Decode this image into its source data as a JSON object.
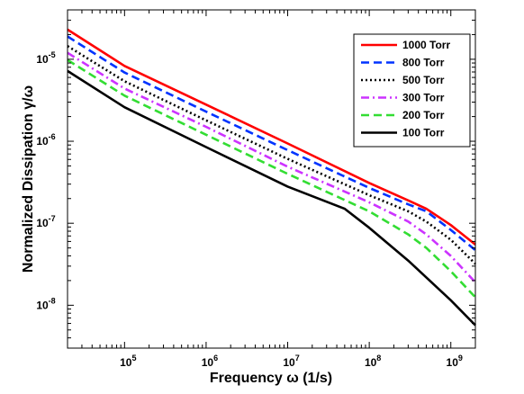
{
  "chart_data": {
    "type": "line",
    "xlabel": "Frequency ω (1/s)",
    "ylabel": "Normalized Dissipation γ/ω",
    "x_scale": "log",
    "y_scale": "log",
    "xlim": [
      20000,
      2000000000
    ],
    "ylim": [
      3e-09,
      4e-05
    ],
    "x_ticks": [
      {
        "value": 100000,
        "base": "10",
        "exp": "5"
      },
      {
        "value": 1000000,
        "base": "10",
        "exp": "6"
      },
      {
        "value": 10000000,
        "base": "10",
        "exp": "7"
      },
      {
        "value": 100000000,
        "base": "10",
        "exp": "8"
      },
      {
        "value": 1000000000,
        "base": "10",
        "exp": "9"
      }
    ],
    "y_ticks": [
      {
        "value": 1e-08,
        "base": "10",
        "exp": "-8"
      },
      {
        "value": 1e-07,
        "base": "10",
        "exp": "-7"
      },
      {
        "value": 1e-06,
        "base": "10",
        "exp": "-6"
      },
      {
        "value": 1e-05,
        "base": "10",
        "exp": "-5"
      }
    ],
    "grid": false,
    "legend_position": "top-right",
    "series": [
      {
        "name": "1000 Torr",
        "color": "#ff0000",
        "style": "solid",
        "x": [
          20000,
          100000,
          1000000,
          10000000,
          100000000,
          300000000,
          500000000,
          1000000000,
          2000000000
        ],
        "y": [
          2.3e-05,
          8.3e-06,
          2.8e-06,
          9.4e-07,
          3.1e-07,
          1.9e-07,
          1.5e-07,
          9.5e-08,
          5.5e-08
        ]
      },
      {
        "name": "800 Torr",
        "color": "#0033ff",
        "style": "dashed",
        "x": [
          20000,
          100000,
          1000000,
          10000000,
          100000000,
          300000000,
          500000000,
          1000000000,
          2000000000
        ],
        "y": [
          1.9e-05,
          6.9e-06,
          2.3e-06,
          7.8e-07,
          2.7e-07,
          1.7e-07,
          1.4e-07,
          8.3e-08,
          4.7e-08
        ]
      },
      {
        "name": "500 Torr",
        "color": "#000000",
        "style": "dotted",
        "x": [
          20000,
          100000,
          1000000,
          10000000,
          100000000,
          300000000,
          500000000,
          1000000000,
          2000000000
        ],
        "y": [
          1.45e-05,
          5.4e-06,
          1.8e-06,
          6.1e-07,
          2.2e-07,
          1.4e-07,
          1.05e-07,
          6.3e-08,
          3.2e-08
        ]
      },
      {
        "name": "300 Torr",
        "color": "#cc33ff",
        "style": "dashdot",
        "x": [
          20000,
          100000,
          1000000,
          10000000,
          100000000,
          300000000,
          500000000,
          1000000000,
          2000000000
        ],
        "y": [
          1.2e-05,
          4.4e-06,
          1.5e-06,
          4.9e-07,
          1.8e-07,
          1.05e-07,
          7.3e-08,
          4e-08,
          1.9e-08
        ]
      },
      {
        "name": "200 Torr",
        "color": "#33dd33",
        "style": "dashed",
        "x": [
          20000,
          100000,
          1000000,
          10000000,
          100000000,
          300000000,
          500000000,
          1000000000,
          2000000000
        ],
        "y": [
          9.8e-06,
          3.6e-06,
          1.2e-06,
          4e-07,
          1.4e-07,
          7.3e-08,
          5e-08,
          2.6e-08,
          1.25e-08
        ]
      },
      {
        "name": "100 Torr",
        "color": "#000000",
        "style": "solid",
        "x": [
          20000,
          100000,
          1000000,
          10000000,
          50000000,
          100000000,
          300000000,
          1000000000,
          2000000000
        ],
        "y": [
          7.2e-06,
          2.6e-06,
          8.5e-07,
          2.8e-07,
          1.5e-07,
          8.8e-08,
          3.5e-08,
          1.15e-08,
          5.7e-09
        ]
      }
    ]
  }
}
